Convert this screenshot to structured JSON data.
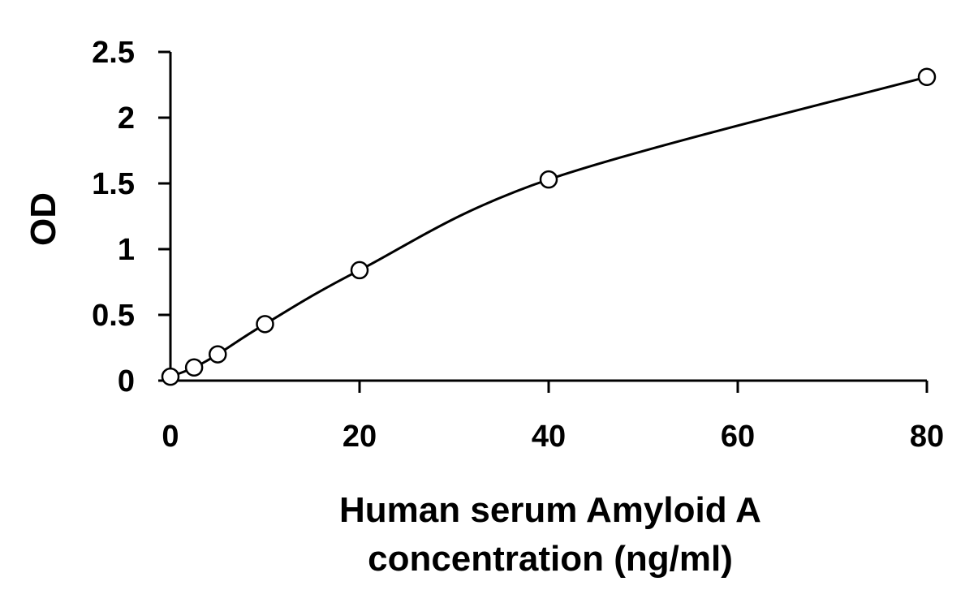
{
  "chart_data": {
    "type": "scatter",
    "title": "",
    "xlabel_lines": [
      "Human serum Amyloid A",
      "concentration (ng/ml)"
    ],
    "ylabel": "OD",
    "xlim": [
      0,
      80
    ],
    "ylim": [
      0,
      2.5
    ],
    "x_ticks": [
      0,
      20,
      40,
      60,
      80
    ],
    "x_tick_labels": [
      "0",
      "20",
      "40",
      "60",
      "80"
    ],
    "y_ticks": [
      0,
      0.5,
      1,
      1.5,
      2,
      2.5
    ],
    "y_tick_labels": [
      "0",
      "0.5",
      "1",
      "1.5",
      "2",
      "2.5"
    ],
    "grid": false,
    "legend": "none",
    "series": [
      {
        "points": [
          {
            "x": 0,
            "y": 0.03
          },
          {
            "x": 2.5,
            "y": 0.1
          },
          {
            "x": 5,
            "y": 0.2
          },
          {
            "x": 10,
            "y": 0.43
          },
          {
            "x": 20,
            "y": 0.84
          },
          {
            "x": 40,
            "y": 1.53
          },
          {
            "x": 80,
            "y": 2.31
          }
        ],
        "marker": "open-circle",
        "fit": "smooth-curve",
        "color": "#000000"
      }
    ]
  }
}
